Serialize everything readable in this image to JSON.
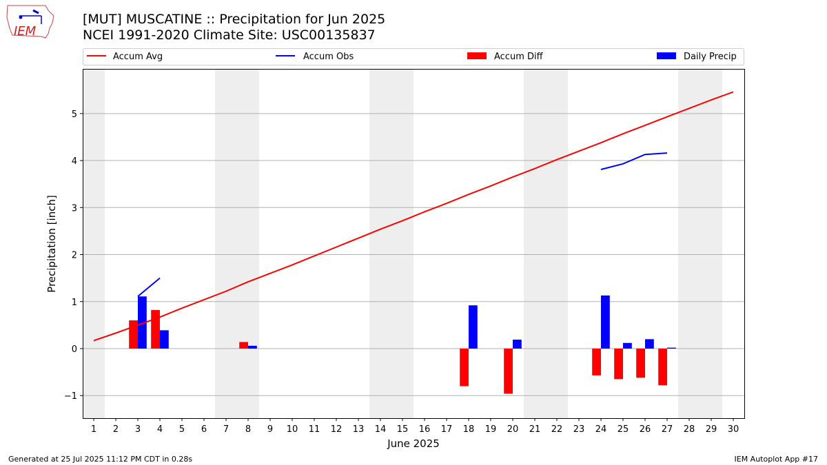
{
  "header": {
    "title": "[MUT] MUSCATINE :: Precipitation for Jun 2025",
    "subtitle": "NCEI 1991-2020 Climate Site: USC00135837",
    "logo_text": "IEM"
  },
  "footer": {
    "generated": "Generated at 25 Jul 2025 11:12 PM CDT in 0.28s",
    "app": "IEM Autoplot App #17"
  },
  "chart_data": {
    "type": "bar",
    "xlabel": "June 2025",
    "ylabel": "Precipitation [inch]",
    "xlim": [
      0.5,
      30.5
    ],
    "ylim": [
      -1.48,
      5.95
    ],
    "x_ticks": [
      1,
      2,
      3,
      4,
      5,
      6,
      7,
      8,
      9,
      10,
      11,
      12,
      13,
      14,
      15,
      16,
      17,
      18,
      19,
      20,
      21,
      22,
      23,
      24,
      25,
      26,
      27,
      28,
      29,
      30
    ],
    "y_ticks": [
      -1,
      0,
      1,
      2,
      3,
      4,
      5
    ],
    "y_tick_labels": [
      "−1",
      "0",
      "1",
      "2",
      "3",
      "4",
      "5"
    ],
    "grid": "horizontal",
    "legend_placement": "top",
    "weekend_shading": [
      [
        0.5,
        1.5
      ],
      [
        6.5,
        8.5
      ],
      [
        13.5,
        15.5
      ],
      [
        20.5,
        22.5
      ],
      [
        27.5,
        29.5
      ]
    ],
    "colors": {
      "avg": "#ff0000",
      "obs": "#0000ff",
      "diff": "#ff0000",
      "daily": "#0000ff",
      "shade": "#eeeeee",
      "grid": "#b0b0b0"
    },
    "series": [
      {
        "name": "Accum Avg",
        "kind": "line",
        "days": [
          1,
          2,
          3,
          4,
          5,
          6,
          7,
          8,
          9,
          10,
          11,
          12,
          13,
          14,
          15,
          16,
          17,
          18,
          19,
          20,
          21,
          22,
          23,
          24,
          25,
          26,
          27,
          28,
          29,
          30
        ],
        "values": [
          0.17,
          0.33,
          0.5,
          0.67,
          0.86,
          1.04,
          1.22,
          1.42,
          1.6,
          1.78,
          1.97,
          2.16,
          2.35,
          2.54,
          2.72,
          2.91,
          3.09,
          3.28,
          3.46,
          3.65,
          3.83,
          4.02,
          4.2,
          4.38,
          4.57,
          4.75,
          4.93,
          5.11,
          5.29,
          5.46
        ]
      },
      {
        "name": "Accum Obs",
        "kind": "line",
        "days": [
          3,
          4,
          null,
          24,
          25,
          26,
          27
        ],
        "values": [
          1.11,
          1.5,
          null,
          3.81,
          3.93,
          4.13,
          4.16
        ]
      },
      {
        "name": "Accum Diff",
        "kind": "bar",
        "days": [
          3,
          4,
          8,
          18,
          20,
          24,
          25,
          26,
          27
        ],
        "values": [
          0.6,
          0.82,
          0.14,
          -0.8,
          -0.96,
          -0.57,
          -0.65,
          -0.62,
          -0.78
        ]
      },
      {
        "name": "Daily Precip",
        "kind": "bar",
        "days": [
          3,
          4,
          8,
          18,
          20,
          24,
          25,
          26,
          27
        ],
        "values": [
          1.11,
          0.39,
          0.06,
          0.92,
          0.19,
          1.13,
          0.12,
          0.2,
          0.02
        ]
      }
    ]
  }
}
